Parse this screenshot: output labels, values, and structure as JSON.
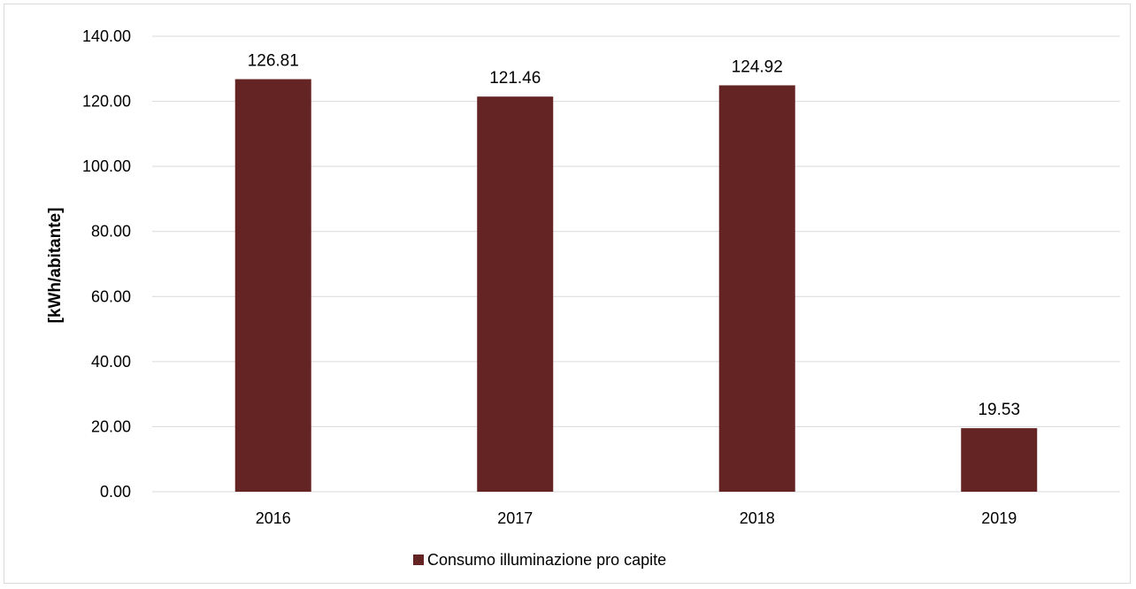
{
  "chart_data": {
    "type": "bar",
    "categories": [
      "2016",
      "2017",
      "2018",
      "2019"
    ],
    "series": [
      {
        "name": "Consumo illuminazione pro capite",
        "values": [
          126.81,
          121.46,
          124.92,
          19.53
        ],
        "labels": [
          "126.81",
          "121.46",
          "124.92",
          "19.53"
        ],
        "color": "#642424"
      }
    ],
    "title": "",
    "xlabel": "",
    "ylabel": "[kWh/abitante]",
    "ylim": [
      0,
      140
    ],
    "yticks": [
      "0.00",
      "20.00",
      "40.00",
      "60.00",
      "80.00",
      "100.00",
      "120.00",
      "140.00"
    ],
    "grid": true,
    "legend_position": "bottom",
    "gridline_color": "#d9d9d9"
  }
}
